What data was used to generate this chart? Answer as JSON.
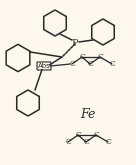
{
  "bg_color": "#fdf8ee",
  "line_color": "#2a2a2a",
  "line_width": 1.1,
  "figsize": [
    1.36,
    1.65
  ],
  "dpi": 100,
  "fe_label": "Fe",
  "fe_fontsize": 9,
  "abs_label": "Abs",
  "abs_fontsize": 5.0,
  "p_label": "P",
  "p_fontsize": 7,
  "c_fontsize": 5.5
}
